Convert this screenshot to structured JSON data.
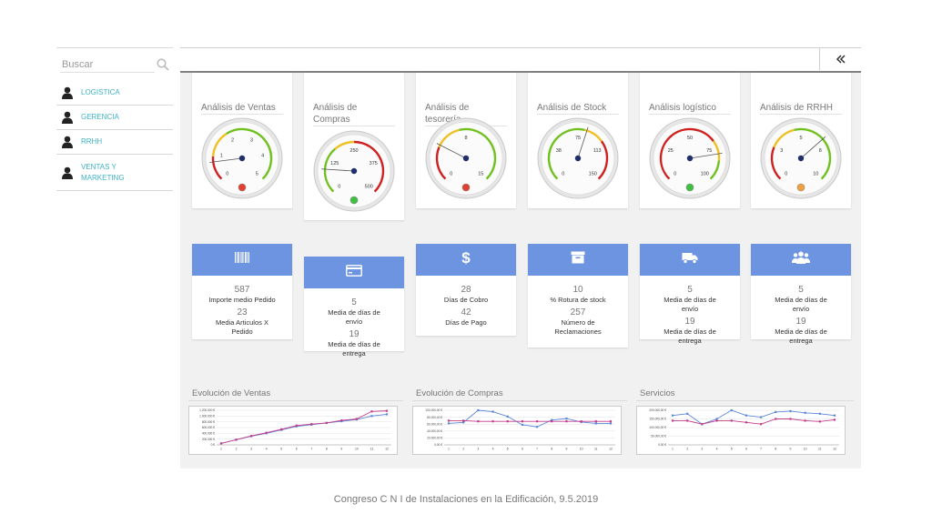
{
  "sidebar": {
    "search_placeholder": "Buscar",
    "items": [
      {
        "label": "LOGISTICA",
        "icon": "user-icon"
      },
      {
        "label": "GERENCIA",
        "icon": "user-icon"
      },
      {
        "label": "RRHH",
        "icon": "user-icon"
      },
      {
        "label": "VENTAS Y MARKETING",
        "icon": "user-icon"
      }
    ]
  },
  "topbar": {
    "collapse_icon": "double-chevron-left-icon"
  },
  "gauges": [
    {
      "title": "Análisis de Ventas",
      "min": 0,
      "max": 5,
      "ticks": [
        "0",
        "1",
        "2",
        "3",
        "4",
        "5"
      ],
      "value": 0.7,
      "light": "red"
    },
    {
      "title": "Análisis de Compras",
      "min": 0,
      "max": 500,
      "ticks": [
        "0",
        "125",
        "250",
        "375",
        "500"
      ],
      "value": 90,
      "light": "green"
    },
    {
      "title": "Análisis de tesorería",
      "min": 0,
      "max": 15,
      "ticks": [
        "0",
        "8",
        "15"
      ],
      "value": 4,
      "light": "red"
    },
    {
      "title": "Análisis de Stock",
      "min": 0,
      "max": 150,
      "ticks": [
        "0",
        "38",
        "75",
        "113",
        "150"
      ],
      "value": 85,
      "light": "none"
    },
    {
      "title": "Análisis logístico",
      "min": 0,
      "max": 100,
      "ticks": [
        "0",
        "25",
        "50",
        "75",
        "100"
      ],
      "value": 80,
      "light": "green"
    },
    {
      "title": "Análisis de RRHH",
      "min": 0,
      "max": 10,
      "ticks": [
        "0",
        "3",
        "5",
        "8",
        "10"
      ],
      "value": 6.8,
      "light": "orange"
    }
  ],
  "kpis": [
    {
      "icon": "barcode-icon",
      "lines": [
        {
          "v": "587",
          "l": "Importe medio Pedido"
        },
        {
          "v": "23",
          "l": "Media Articulos X Pedido"
        }
      ]
    },
    {
      "icon": "credit-card-icon",
      "lines": [
        {
          "v": "5",
          "l": "Media de días de envío"
        },
        {
          "v": "19",
          "l": "Media de días de entrega"
        }
      ]
    },
    {
      "icon": "dollar-icon",
      "lines": [
        {
          "v": "28",
          "l": "Días de Cobro"
        },
        {
          "v": "42",
          "l": "Días de Pago"
        }
      ]
    },
    {
      "icon": "archive-icon",
      "lines": [
        {
          "v": "10",
          "l": "% Rotura de stock"
        },
        {
          "v": "257",
          "l": "Número de Reclamaciones"
        }
      ]
    },
    {
      "icon": "truck-icon",
      "lines": [
        {
          "v": "5",
          "l": "Media de días de envío"
        },
        {
          "v": "19",
          "l": "Media de días de entrega"
        }
      ]
    },
    {
      "icon": "users-icon",
      "lines": [
        {
          "v": "5",
          "l": "Media de días de envío"
        },
        {
          "v": "19",
          "l": "Media de días de entrega"
        }
      ]
    }
  ],
  "chart_data": [
    {
      "type": "line",
      "title": "Evolución de Ventas",
      "x": [
        "1",
        "2",
        "3",
        "4",
        "5",
        "6",
        "7",
        "8",
        "9",
        "10",
        "11",
        "12"
      ],
      "yticks": [
        "0 €",
        "200.000 €",
        "400.000 €",
        "600.000 €",
        "800.000 €",
        "1.000.000 €",
        "1.200.000 €"
      ],
      "ylim": [
        0,
        1200000
      ],
      "series": [
        {
          "color": "#5b86d8",
          "values": [
            50000,
            180000,
            300000,
            400000,
            520000,
            640000,
            700000,
            760000,
            820000,
            880000,
            1000000,
            1060000
          ]
        },
        {
          "color": "#c23b8c",
          "values": [
            50000,
            180000,
            310000,
            420000,
            540000,
            670000,
            720000,
            760000,
            850000,
            900000,
            1160000,
            1180000
          ]
        }
      ]
    },
    {
      "type": "line",
      "title": "Evolución de Compras",
      "x": [
        "1",
        "2",
        "3",
        "4",
        "5",
        "6",
        "7",
        "8",
        "9",
        "10",
        "11",
        "12"
      ],
      "yticks": [
        "0,00 €",
        "20.000,00 €",
        "40.000,00 €",
        "60.000,00 €",
        "80.000,00 €",
        "100.000,00 €"
      ],
      "ylim": [
        0,
        100000
      ],
      "series": [
        {
          "color": "#5b86d8",
          "values": [
            62000,
            65000,
            100000,
            96000,
            82000,
            58000,
            52000,
            72000,
            76000,
            66000,
            62000,
            62000
          ]
        },
        {
          "color": "#c23b8c",
          "values": [
            70000,
            70000,
            68000,
            68000,
            68000,
            68000,
            68000,
            68000,
            68000,
            68000,
            68000,
            68000
          ]
        }
      ]
    },
    {
      "type": "line",
      "title": "Servicios",
      "x": [
        "1",
        "2",
        "3",
        "4",
        "5",
        "6",
        "7",
        "8",
        "9",
        "10",
        "11",
        "12"
      ],
      "yticks": [
        "0,00 €",
        "50.000,00 €",
        "100.000,00 €",
        "150.000,00 €",
        "200.000,00 €"
      ],
      "ylim": [
        0,
        200000
      ],
      "series": [
        {
          "color": "#5b86d8",
          "values": [
            170000,
            180000,
            120000,
            150000,
            200000,
            170000,
            160000,
            190000,
            195000,
            185000,
            180000,
            170000
          ]
        },
        {
          "color": "#c23b8c",
          "values": [
            140000,
            140000,
            120000,
            140000,
            140000,
            130000,
            120000,
            150000,
            150000,
            140000,
            135000,
            145000
          ]
        }
      ]
    }
  ],
  "footer": {
    "text": "Congreso C N I de Instalaciones en la Edificación, 9.5.2019"
  },
  "colors": {
    "accent": "#6d94e0",
    "link": "#40b4c8",
    "panel_bg": "#f1f1f1"
  }
}
